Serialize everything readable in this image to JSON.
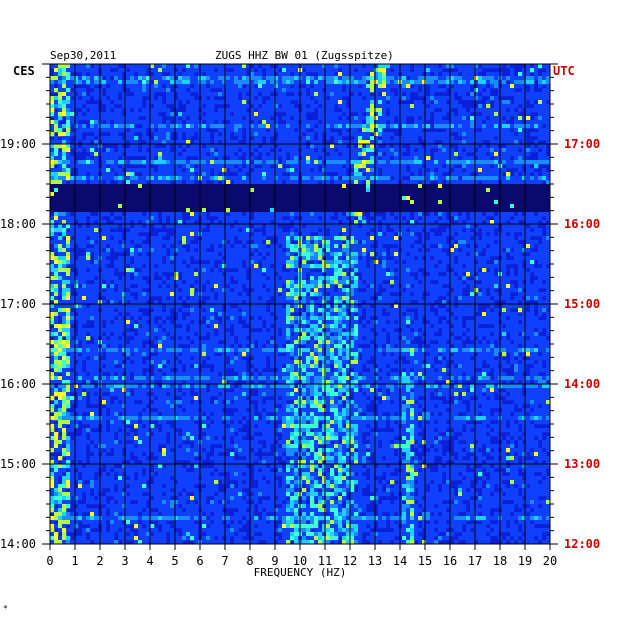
{
  "header": {
    "date": "Sep30,2011",
    "station": "ZUGS HHZ BW 01 (Zugsspitze)"
  },
  "footnote": "*",
  "chart_data": {
    "type": "heatmap",
    "title": "ZUGS HHZ BW 01 (Zugsspitze)",
    "date": "Sep30,2011",
    "xlabel": "FREQUENCY (HZ)",
    "xlim": [
      0,
      20
    ],
    "x_ticks": [
      "0",
      "1",
      "2",
      "3",
      "4",
      "5",
      "6",
      "7",
      "8",
      "9",
      "10",
      "11",
      "12",
      "13",
      "14",
      "15",
      "16",
      "17",
      "18",
      "19",
      "20"
    ],
    "left_axis": {
      "label": "CES",
      "range": [
        "14:00",
        "20:00"
      ],
      "ticks": [
        "19:00",
        "18:00",
        "17:00",
        "16:00",
        "15:00",
        "14:00"
      ]
    },
    "right_axis": {
      "label": "UTC",
      "range": [
        "12:00",
        "18:00"
      ],
      "ticks": [
        "17:00",
        "16:00",
        "15:00",
        "14:00",
        "13:00",
        "12:00"
      ]
    },
    "colors": {
      "background": "#0a1fd6",
      "quiet": "#0e0e7a",
      "gridlines": "#000000",
      "utc_labels": "#cc0000",
      "scale": [
        "#0a0a6e",
        "#0c1ab8",
        "#1040ff",
        "#1a8cff",
        "#20d0ff",
        "#40ffd0",
        "#b0ff40",
        "#ffff20"
      ]
    },
    "features": [
      {
        "name": "low-frequency band",
        "freq_range": [
          0,
          0.8
        ],
        "time_range_ces": [
          "14:00",
          "20:00"
        ],
        "intensity": 0.85
      },
      {
        "name": "drifting tremor",
        "freq_range": [
          11.8,
          13.6
        ],
        "time_range_ces": [
          "18:00",
          "20:00"
        ],
        "intensity": 0.9
      },
      {
        "name": "broadband noise",
        "freq_range": [
          9.5,
          12.3
        ],
        "time_range_ces": [
          "14:00",
          "17:50"
        ],
        "intensity": 0.7
      },
      {
        "name": "spectral line 14.3 Hz",
        "freq_range": [
          14.1,
          14.5
        ],
        "time_range_ces": [
          "14:00",
          "16:10"
        ],
        "intensity": 0.7
      },
      {
        "name": "quiet interval",
        "freq_range": [
          0,
          20
        ],
        "time_range_ces": [
          "18:08",
          "18:30"
        ],
        "intensity": 0.1
      }
    ]
  }
}
